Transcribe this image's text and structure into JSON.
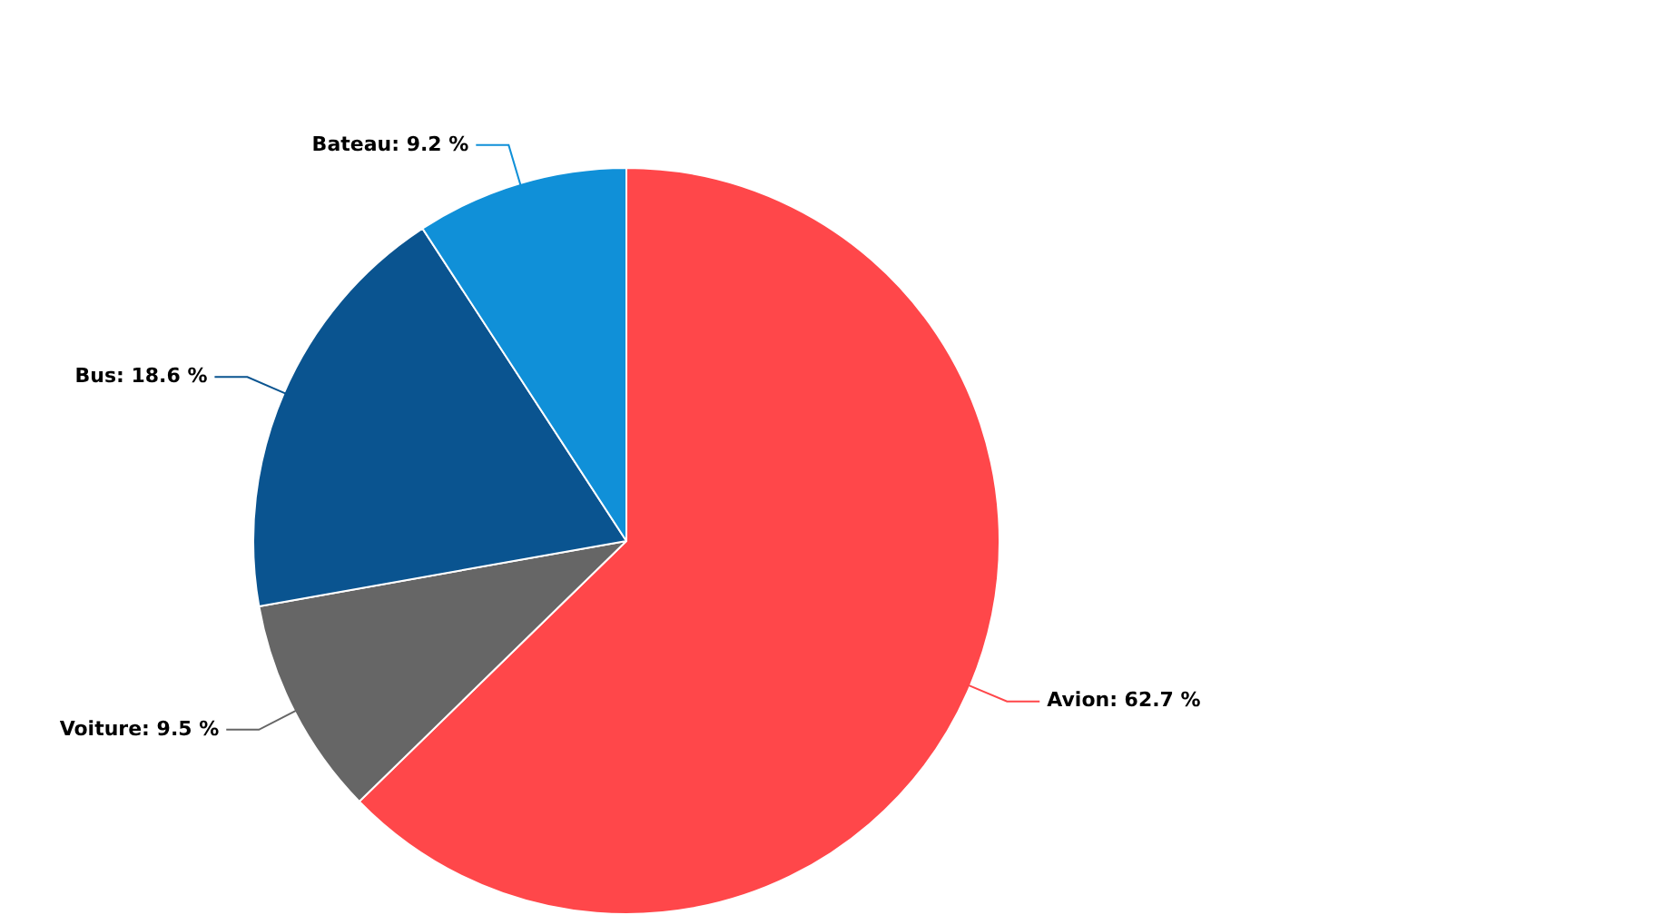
{
  "chart_data": {
    "type": "pie",
    "categories": [
      "Avion",
      "Voiture",
      "Bus",
      "Bateau"
    ],
    "values": [
      62.7,
      9.5,
      18.6,
      9.2
    ],
    "colors": [
      "#ff474a",
      "#666666",
      "#0a5490",
      "#1090d8"
    ],
    "value_labels": [
      ": 62.7 %",
      ": 9.5 %",
      ": 18.6 %",
      ": 9.2 %"
    ]
  }
}
